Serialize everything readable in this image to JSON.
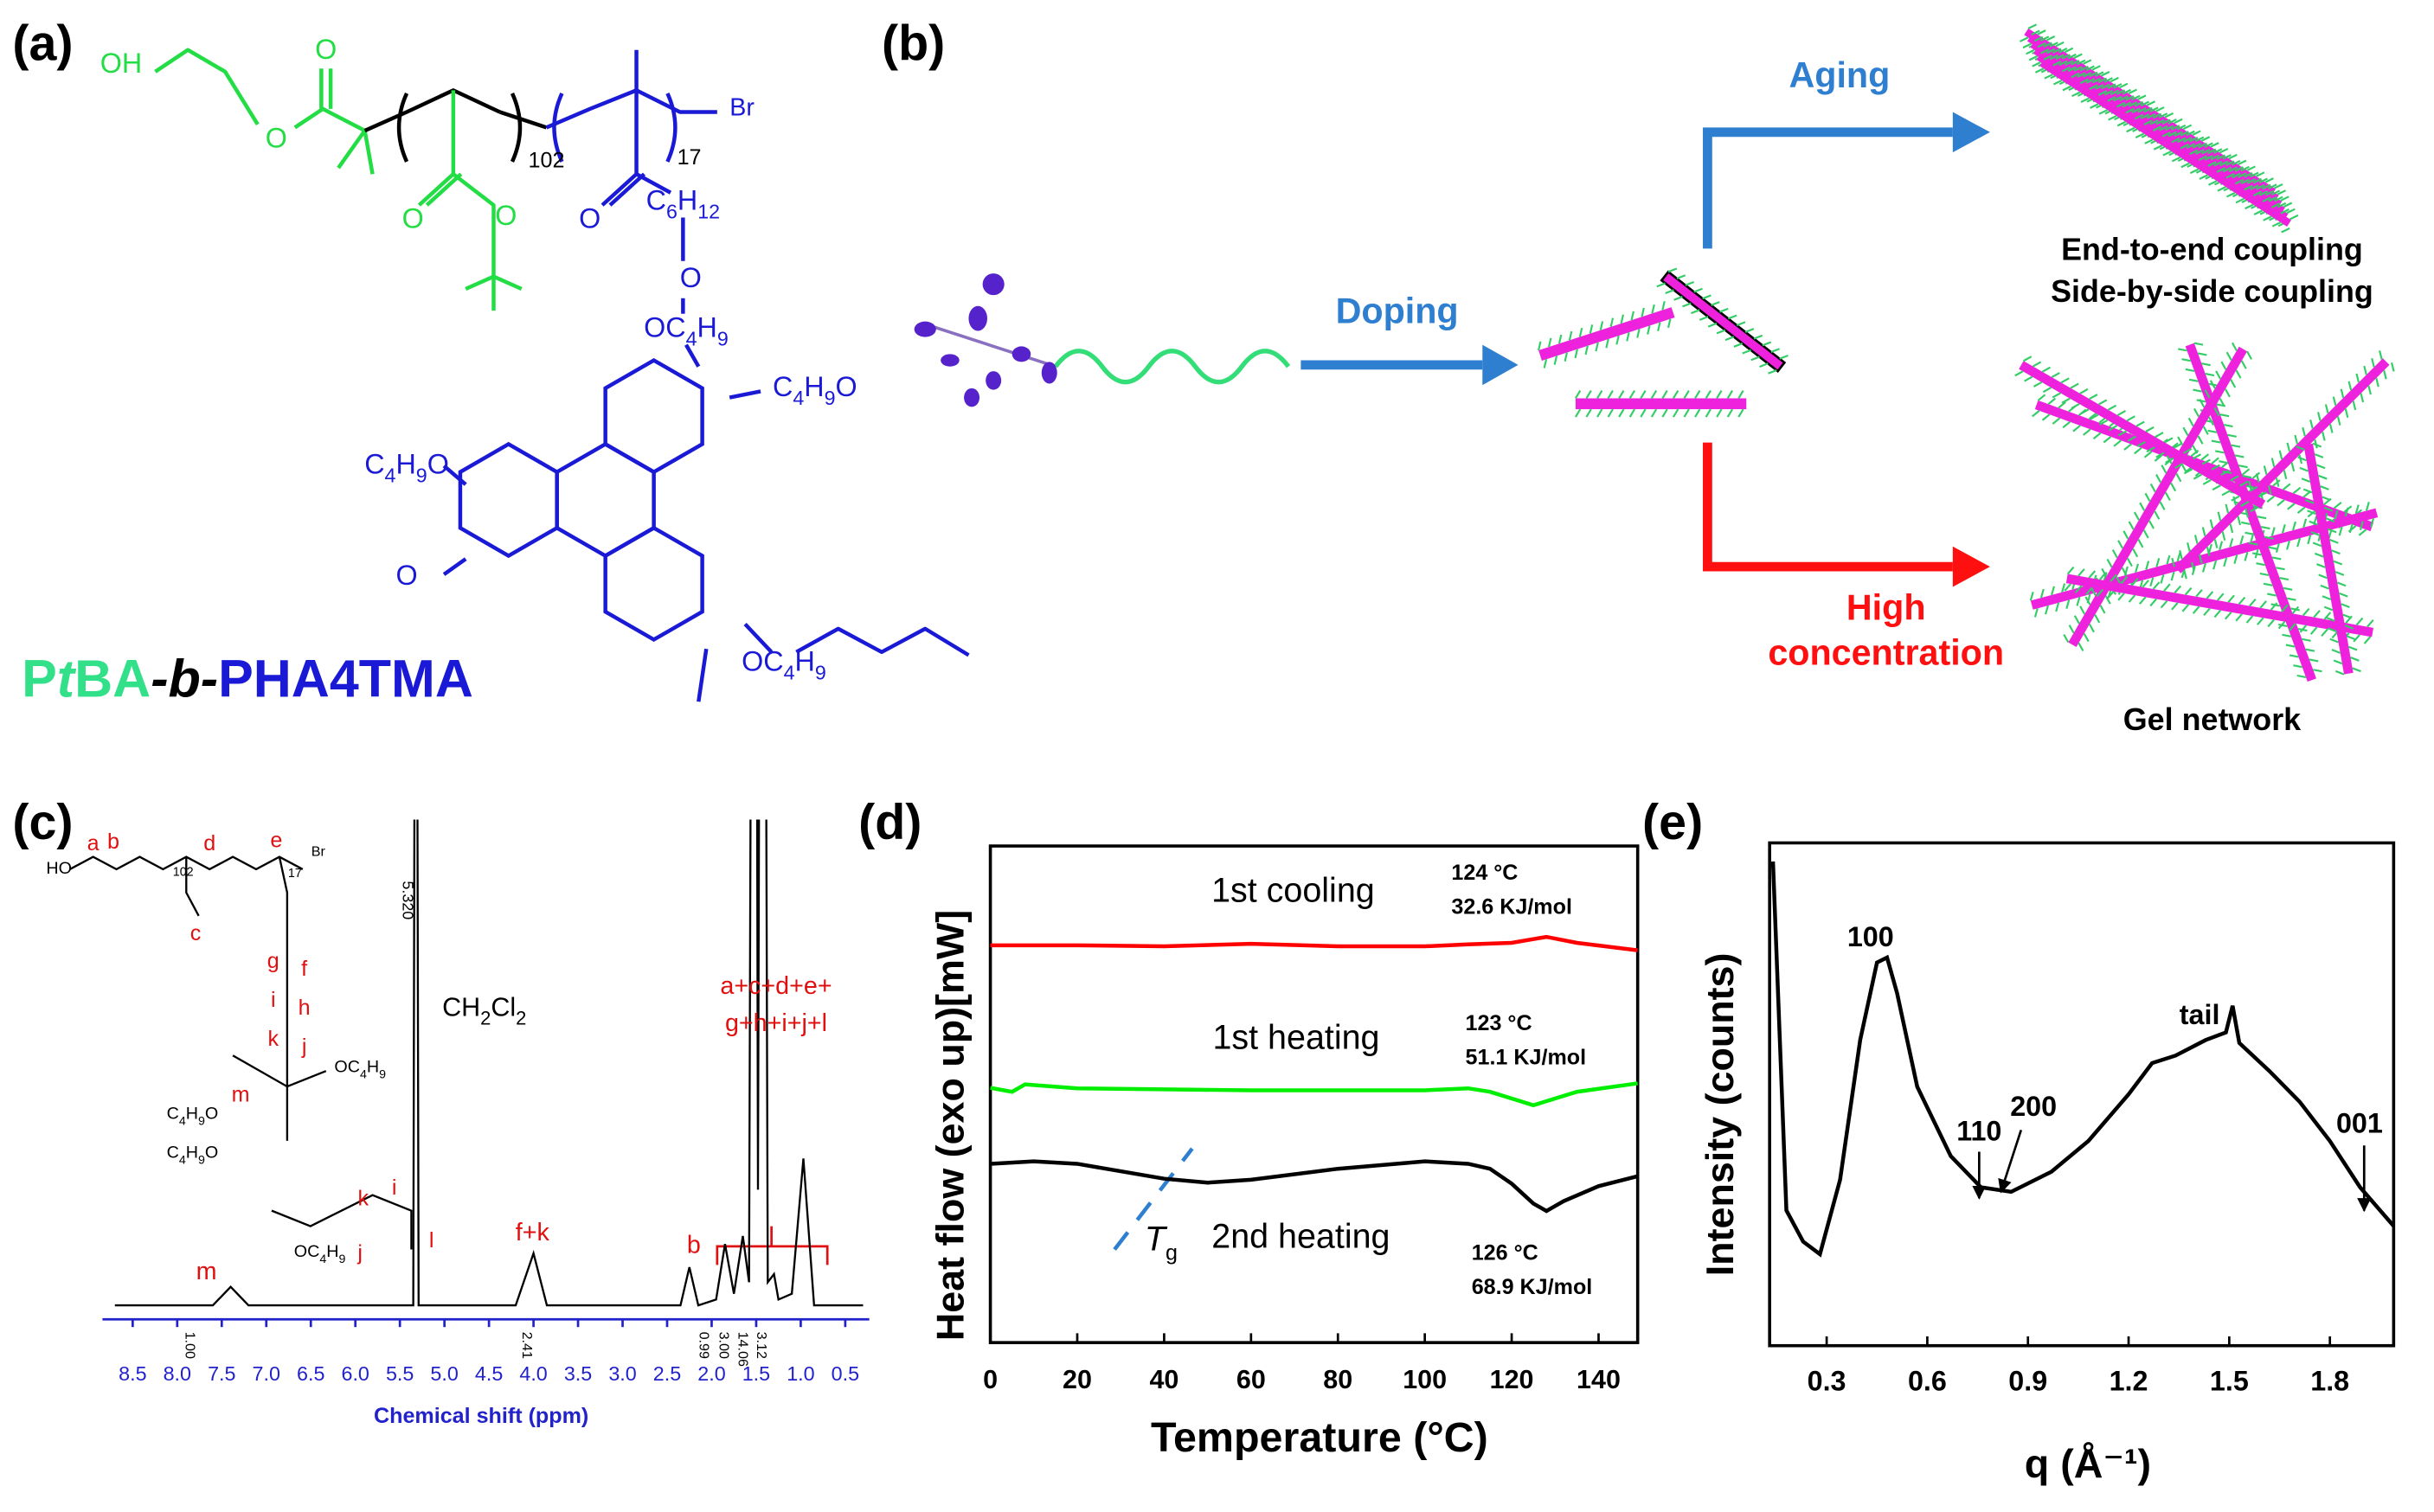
{
  "panels": {
    "labels": [
      "(a)",
      "(b)",
      "(c)",
      "(d)",
      "(e)"
    ]
  },
  "structure_a": {
    "texts": [
      "OH",
      "O",
      "O",
      "102",
      "17",
      "Br",
      "O",
      "O",
      "O",
      "C6H12",
      "O",
      "OC4H9",
      "C4H9O",
      "C4H9O",
      "O",
      "OC4H9"
    ],
    "title_parts": [
      "P",
      "t",
      "BA",
      "-",
      "b",
      "-",
      "PHA4TMA"
    ]
  },
  "scheme_b": {
    "steps": [
      "Doping",
      "Aging",
      "High",
      "concentration"
    ],
    "results": [
      "End-to-end  coupling",
      "Side-by-side coupling",
      "Gel network"
    ]
  },
  "chart_data": [
    {
      "type": "line",
      "x_label": "Chemical shift (ppm)",
      "xlim": [
        8.7,
        0.3
      ],
      "xticks": [
        8.5,
        {
          "value": 8,
          "label": "8.0"
        },
        7.5,
        {
          "value": 7,
          "label": "7.0"
        },
        6.5,
        {
          "value": 6,
          "label": "6.0"
        },
        5.5,
        {
          "value": 5,
          "label": "5.0"
        },
        4.5,
        {
          "value": 4,
          "label": "4.0"
        },
        3.5,
        {
          "value": 3,
          "label": "3.0"
        },
        2.5,
        {
          "value": 2,
          "label": "2.0"
        },
        1.5,
        {
          "value": 1,
          "label": "1.0"
        },
        0.5
      ],
      "series": [
        {
          "color": "#000000",
          "x": [
            8.7,
            7.6,
            7.4,
            7.2,
            5.35,
            5.32,
            5.29,
            4.2,
            4.0,
            3.85,
            2.35,
            2.25,
            2.15,
            1.95,
            1.85,
            1.75,
            1.65,
            1.58,
            1.52,
            1.48,
            1.43,
            1.37,
            1.3,
            1.25,
            1.1,
            0.97,
            0.85,
            0.3
          ],
          "values": [
            0,
            0,
            1.6,
            0,
            0,
            100,
            0,
            0,
            4.5,
            0,
            0,
            3.3,
            0,
            0.5,
            5.3,
            1,
            6,
            2,
            150,
            10,
            150,
            2,
            2.7,
            0.5,
            1,
            12.7,
            0,
            0
          ]
        }
      ],
      "annotations": [
        "m",
        "f+k",
        "b",
        "a+c+d+e+",
        "g+h+i+j+l",
        "CH2Cl2",
        "5.320"
      ],
      "integrals": [
        "1.00",
        "2.41",
        "0.99",
        "3.00",
        "14.06",
        "3.12"
      ],
      "inset_labels": [
        "HO",
        "a",
        "b",
        "102",
        "d",
        "e",
        "17",
        "Br",
        "c",
        "g",
        "f",
        "h",
        "i",
        "k",
        "j",
        "OC4H9",
        "m",
        "C4H9O",
        "C4H9O",
        "k",
        "i",
        "j",
        "l",
        "OC4H9"
      ]
    },
    {
      "type": "line",
      "x_label": "Temperature (°C)",
      "y_label": "Heat flow (exo up)[mW]",
      "xlim": [
        0,
        149
      ],
      "xticks": [
        0,
        20,
        40,
        60,
        80,
        100,
        120,
        140
      ],
      "ylim": [
        0,
        100
      ],
      "series": [
        {
          "name": "1st cooling",
          "color": "#ff0000",
          "x": [
            0,
            10,
            20,
            40,
            60,
            80,
            100,
            110,
            120,
            128,
            135,
            149
          ],
          "values": [
            80,
            80,
            80,
            79.8,
            80.3,
            79.8,
            79.8,
            80.2,
            80.5,
            81.7,
            80.5,
            79
          ]
        },
        {
          "name": "1st heating",
          "color": "#00ee00",
          "x": [
            0,
            5,
            8,
            20,
            40,
            60,
            80,
            100,
            110,
            115,
            125,
            135,
            149
          ],
          "values": [
            51.3,
            50.5,
            52,
            51.2,
            51,
            50.8,
            50.8,
            50.8,
            51.2,
            50.5,
            47.8,
            50.5,
            52.2
          ]
        },
        {
          "name": "2nd heating",
          "color": "#000000",
          "x": [
            0,
            10,
            20,
            30,
            40,
            50,
            60,
            80,
            100,
            110,
            115,
            120,
            125,
            128,
            132,
            140,
            149
          ],
          "values": [
            36,
            36.5,
            36,
            34.5,
            33,
            32.2,
            32.8,
            35,
            36.5,
            36,
            35,
            32,
            28,
            26.5,
            28.5,
            31.5,
            33.5
          ]
        }
      ],
      "annotations": [
        "124 °C",
        "32.6 KJ/mol",
        "123 °C",
        "51.1 KJ/mol",
        "126 °C",
        "68.9 KJ/mol"
      ],
      "tg_label": "Tg"
    },
    {
      "type": "line",
      "x_label": "q (Å⁻¹)",
      "y_label": "Intensity (counts)",
      "xlim": [
        0.13,
        1.99
      ],
      "xticks": [
        0.3,
        0.6,
        0.9,
        1.2,
        1.5,
        1.8
      ],
      "ylim": [
        0,
        100
      ],
      "series": [
        {
          "color": "#000000",
          "x": [
            0.14,
            0.18,
            0.23,
            0.28,
            0.34,
            0.4,
            0.45,
            0.48,
            0.51,
            0.57,
            0.67,
            0.76,
            0.85,
            0.97,
            1.08,
            1.2,
            1.27,
            1.34,
            1.43,
            1.49,
            1.51,
            1.53,
            1.62,
            1.71,
            1.8,
            1.89,
            1.99
          ],
          "values": [
            96.3,
            26.9,
            20.7,
            18.2,
            33,
            60.8,
            76.2,
            77.2,
            70.1,
            51.5,
            37.7,
            31.5,
            30.6,
            34.6,
            40.7,
            50,
            56.2,
            57.7,
            60.8,
            62.3,
            67.6,
            60.2,
            54.6,
            48.5,
            40.7,
            31.5,
            23.8
          ]
        }
      ],
      "annotations": [
        "100",
        "110",
        "200",
        "tail",
        "001"
      ]
    }
  ]
}
